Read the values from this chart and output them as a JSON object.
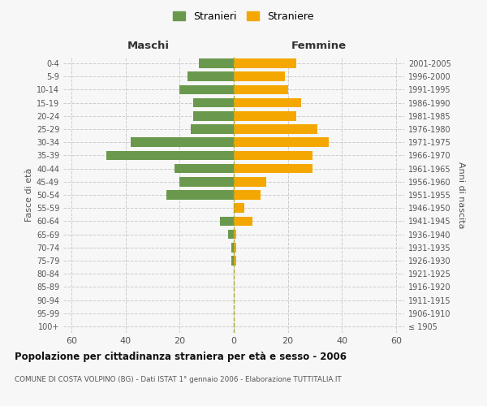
{
  "age_groups": [
    "100+",
    "95-99",
    "90-94",
    "85-89",
    "80-84",
    "75-79",
    "70-74",
    "65-69",
    "60-64",
    "55-59",
    "50-54",
    "45-49",
    "40-44",
    "35-39",
    "30-34",
    "25-29",
    "20-24",
    "15-19",
    "10-14",
    "5-9",
    "0-4"
  ],
  "birth_years": [
    "≤ 1905",
    "1906-1910",
    "1911-1915",
    "1916-1920",
    "1921-1925",
    "1926-1930",
    "1931-1935",
    "1936-1940",
    "1941-1945",
    "1946-1950",
    "1951-1955",
    "1956-1960",
    "1961-1965",
    "1966-1970",
    "1971-1975",
    "1976-1980",
    "1981-1985",
    "1986-1990",
    "1991-1995",
    "1996-2000",
    "2001-2005"
  ],
  "maschi": [
    0,
    0,
    0,
    0,
    0,
    1,
    1,
    2,
    5,
    0,
    25,
    20,
    22,
    47,
    38,
    16,
    15,
    15,
    20,
    17,
    13
  ],
  "femmine": [
    0,
    0,
    0,
    0,
    0,
    1,
    1,
    1,
    7,
    4,
    10,
    12,
    29,
    29,
    35,
    31,
    23,
    25,
    20,
    19,
    23
  ],
  "maschi_color": "#6a994e",
  "femmine_color": "#f4a700",
  "background_color": "#f7f7f7",
  "grid_color": "#cccccc",
  "title": "Popolazione per cittadinanza straniera per età e sesso - 2006",
  "subtitle": "COMUNE DI COSTA VOLPINO (BG) - Dati ISTAT 1° gennaio 2006 - Elaborazione TUTTITALIA.IT",
  "header_left": "Maschi",
  "header_right": "Femmine",
  "ylabel_left": "Fasce di età",
  "ylabel_right": "Anni di nascita",
  "xlim": 63,
  "legend_maschi": "Stranieri",
  "legend_femmine": "Straniere"
}
